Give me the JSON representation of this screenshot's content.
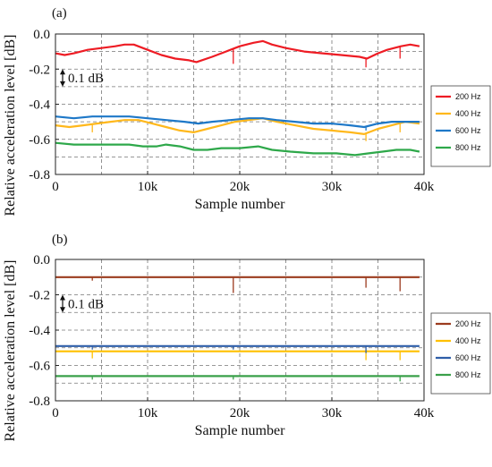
{
  "ylabel_shared": "Relative acceleration level [dB]",
  "chart_data": [
    {
      "type": "line",
      "panel_label": "(a)",
      "xlabel": "Sample number",
      "xlim": [
        0,
        40000
      ],
      "ylim": [
        -0.8,
        0.0
      ],
      "xticks": [
        0,
        10000,
        20000,
        30000,
        40000
      ],
      "xtick_labels": [
        "0",
        "10k",
        "20k",
        "30k",
        "40k"
      ],
      "yticks": [
        0.0,
        -0.2,
        -0.4,
        -0.6,
        -0.8
      ],
      "ytick_labels": [
        "0.0",
        "-0.2",
        "-0.4",
        "-0.6",
        "-0.8"
      ],
      "grid": true,
      "legend_position": "right",
      "annotation": {
        "text": "0.1 dB",
        "from": -0.2,
        "to": -0.3,
        "x": 500
      },
      "series": [
        {
          "name": "200 Hz",
          "color": "#ee1c24",
          "x": [
            0,
            1000,
            2000,
            3500,
            5000,
            6500,
            7500,
            8500,
            10000,
            11500,
            13000,
            14500,
            15300,
            17000,
            18500,
            20000,
            21500,
            22500,
            23500,
            25000,
            27000,
            29000,
            31000,
            33000,
            33800,
            35000,
            36000,
            37500,
            38500,
            39500
          ],
          "y": [
            -0.11,
            -0.12,
            -0.11,
            -0.09,
            -0.08,
            -0.07,
            -0.06,
            -0.06,
            -0.09,
            -0.12,
            -0.14,
            -0.15,
            -0.16,
            -0.13,
            -0.1,
            -0.07,
            -0.05,
            -0.04,
            -0.06,
            -0.08,
            -0.1,
            -0.11,
            -0.12,
            -0.13,
            -0.14,
            -0.11,
            -0.09,
            -0.07,
            -0.06,
            -0.07
          ],
          "spikes": [
            {
              "x": 19300,
              "y": -0.17
            },
            {
              "x": 33700,
              "y": -0.19
            },
            {
              "x": 37400,
              "y": -0.14
            }
          ]
        },
        {
          "name": "400 Hz",
          "color": "#ffb81c",
          "x": [
            0,
            1500,
            3000,
            4500,
            6000,
            7500,
            9000,
            10500,
            12000,
            13500,
            15000,
            16500,
            18000,
            19500,
            21000,
            22500,
            24000,
            26000,
            28000,
            30000,
            32000,
            33500,
            35000,
            36500,
            38000,
            39500
          ],
          "y": [
            -0.52,
            -0.53,
            -0.52,
            -0.51,
            -0.5,
            -0.49,
            -0.49,
            -0.51,
            -0.53,
            -0.55,
            -0.56,
            -0.54,
            -0.52,
            -0.5,
            -0.49,
            -0.48,
            -0.5,
            -0.52,
            -0.54,
            -0.55,
            -0.56,
            -0.57,
            -0.54,
            -0.52,
            -0.5,
            -0.51
          ],
          "spikes": [
            {
              "x": 4000,
              "y": -0.56
            },
            {
              "x": 33700,
              "y": -0.61
            },
            {
              "x": 37400,
              "y": -0.56
            }
          ]
        },
        {
          "name": "600 Hz",
          "color": "#1e78c8",
          "x": [
            0,
            2000,
            4000,
            6000,
            8000,
            10000,
            12000,
            14000,
            15500,
            17000,
            19000,
            21000,
            22500,
            24000,
            26000,
            28000,
            30000,
            32000,
            33500,
            35000,
            36500,
            38000,
            39500
          ],
          "y": [
            -0.47,
            -0.48,
            -0.47,
            -0.47,
            -0.47,
            -0.48,
            -0.49,
            -0.5,
            -0.51,
            -0.5,
            -0.49,
            -0.48,
            -0.48,
            -0.49,
            -0.5,
            -0.51,
            -0.51,
            -0.52,
            -0.53,
            -0.51,
            -0.5,
            -0.5,
            -0.5
          ],
          "spikes": [
            {
              "x": 33700,
              "y": -0.55
            }
          ]
        },
        {
          "name": "800 Hz",
          "color": "#2ea84a",
          "x": [
            0,
            2000,
            4000,
            6000,
            8000,
            9500,
            11000,
            12000,
            13500,
            15000,
            16500,
            18000,
            20000,
            22000,
            23500,
            25500,
            28000,
            30500,
            32500,
            34000,
            35500,
            37000,
            38500,
            39500
          ],
          "y": [
            -0.62,
            -0.63,
            -0.63,
            -0.63,
            -0.63,
            -0.64,
            -0.64,
            -0.63,
            -0.64,
            -0.66,
            -0.66,
            -0.65,
            -0.65,
            -0.64,
            -0.66,
            -0.67,
            -0.68,
            -0.68,
            -0.69,
            -0.68,
            -0.67,
            -0.66,
            -0.66,
            -0.67
          ],
          "spikes": []
        }
      ]
    },
    {
      "type": "line",
      "panel_label": "(b)",
      "xlabel": "Sample number",
      "xlim": [
        0,
        40000
      ],
      "ylim": [
        -0.8,
        0.0
      ],
      "xticks": [
        0,
        10000,
        20000,
        30000,
        40000
      ],
      "xtick_labels": [
        "0",
        "10k",
        "20k",
        "30k",
        "40k"
      ],
      "yticks": [
        0.0,
        -0.2,
        -0.4,
        -0.6,
        -0.8
      ],
      "ytick_labels": [
        "0.0",
        "-0.2",
        "-0.4",
        "-0.6",
        "-0.8"
      ],
      "grid": true,
      "legend_position": "right",
      "annotation": {
        "text": "0.1 dB",
        "from": -0.2,
        "to": -0.3,
        "x": 500
      },
      "series": [
        {
          "name": "200 Hz",
          "color": "#9b3b1e",
          "x": [
            0,
            10000,
            20000,
            30000,
            39500
          ],
          "y": [
            -0.1,
            -0.1,
            -0.1,
            -0.1,
            -0.1
          ],
          "spikes": [
            {
              "x": 4000,
              "y": -0.12
            },
            {
              "x": 19300,
              "y": -0.19
            },
            {
              "x": 33700,
              "y": -0.16
            },
            {
              "x": 37400,
              "y": -0.18
            }
          ]
        },
        {
          "name": "400 Hz",
          "color": "#ffc000",
          "x": [
            0,
            10000,
            20000,
            30000,
            39500
          ],
          "y": [
            -0.52,
            -0.52,
            -0.52,
            -0.52,
            -0.52
          ],
          "spikes": [
            {
              "x": 4000,
              "y": -0.56
            },
            {
              "x": 33700,
              "y": -0.57
            },
            {
              "x": 37400,
              "y": -0.57
            }
          ]
        },
        {
          "name": "600 Hz",
          "color": "#2e5ea8",
          "x": [
            0,
            10000,
            20000,
            30000,
            39500
          ],
          "y": [
            -0.49,
            -0.49,
            -0.49,
            -0.49,
            -0.49
          ],
          "spikes": [
            {
              "x": 4000,
              "y": -0.51
            },
            {
              "x": 19300,
              "y": -0.51
            },
            {
              "x": 33700,
              "y": -0.53
            }
          ]
        },
        {
          "name": "800 Hz",
          "color": "#3aa04a",
          "x": [
            0,
            10000,
            20000,
            30000,
            39500
          ],
          "y": [
            -0.66,
            -0.66,
            -0.66,
            -0.66,
            -0.66
          ],
          "spikes": [
            {
              "x": 4000,
              "y": -0.68
            },
            {
              "x": 19300,
              "y": -0.68
            },
            {
              "x": 37400,
              "y": -0.69
            }
          ]
        }
      ]
    }
  ]
}
